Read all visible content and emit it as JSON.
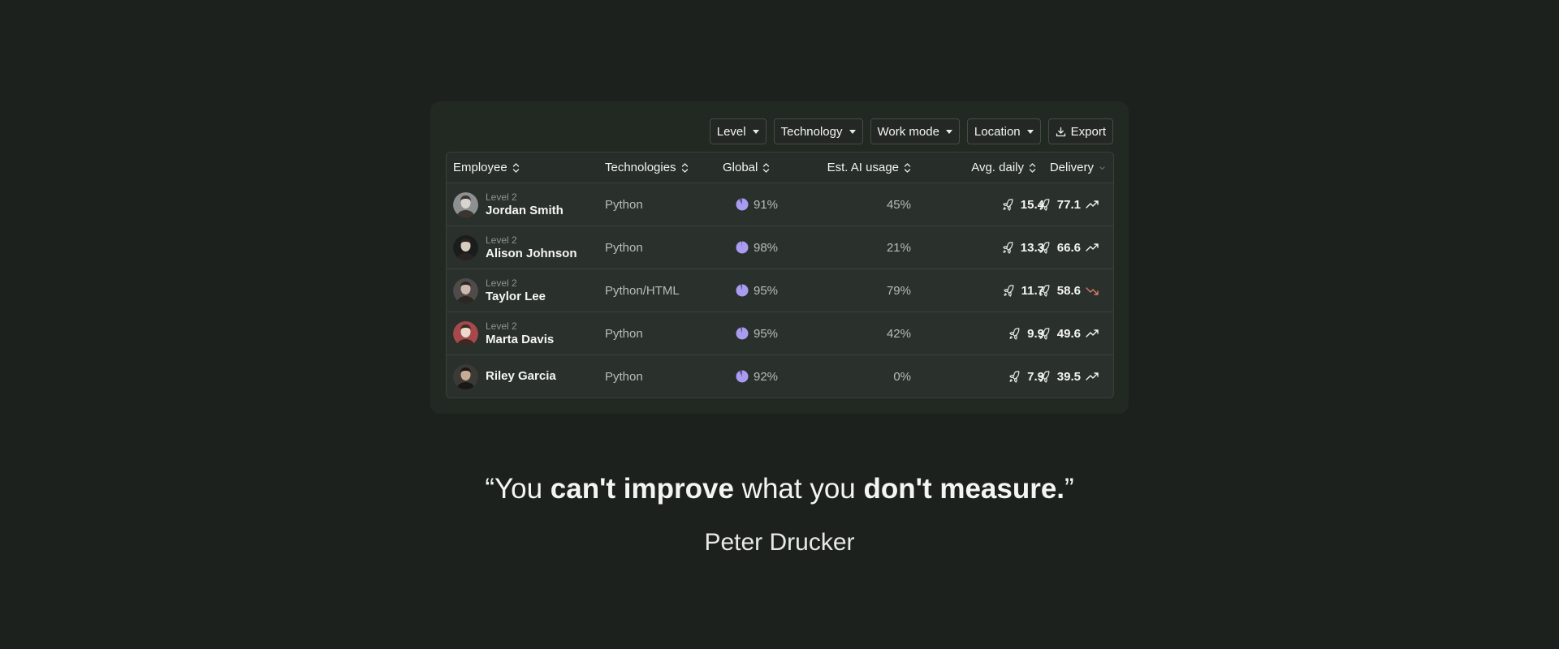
{
  "toolbar": {
    "filters": [
      "Level",
      "Technology",
      "Work mode",
      "Location"
    ],
    "export_label": "Export"
  },
  "table": {
    "headers": {
      "employee": "Employee",
      "technologies": "Technologies",
      "global": "Global",
      "ai_usage": "Est. AI usage",
      "avg_daily": "Avg. daily",
      "delivery": "Delivery"
    },
    "rows": [
      {
        "level": "Level 2",
        "name": "Jordan Smith",
        "tech": "Python",
        "global": "91%",
        "global_value": 0.91,
        "ai": "45%",
        "avg": "15.4",
        "delivery": "77.1",
        "trend": "up"
      },
      {
        "level": "Level 2",
        "name": "Alison Johnson",
        "tech": "Python",
        "global": "98%",
        "global_value": 0.98,
        "ai": "21%",
        "avg": "13.3",
        "delivery": "66.6",
        "trend": "up"
      },
      {
        "level": "Level 2",
        "name": "Taylor Lee",
        "tech": "Python/HTML",
        "global": "95%",
        "global_value": 0.95,
        "ai": "79%",
        "avg": "11.7",
        "delivery": "58.6",
        "trend": "down"
      },
      {
        "level": "Level 2",
        "name": "Marta Davis",
        "tech": "Python",
        "global": "95%",
        "global_value": 0.95,
        "ai": "42%",
        "avg": "9.9",
        "delivery": "49.6",
        "trend": "up"
      },
      {
        "level": "",
        "name": "Riley Garcia",
        "tech": "Python",
        "global": "92%",
        "global_value": 0.92,
        "ai": "0%",
        "avg": "7.9",
        "delivery": "39.5",
        "trend": "up"
      }
    ]
  },
  "quote": {
    "open": "“You ",
    "bold1": "can't improve",
    "mid": " what you ",
    "bold2": "don't measure.",
    "close": "”",
    "author": "Peter Drucker"
  },
  "colors": {
    "background": "#1d211e",
    "card": "#222822",
    "pie": "#a99cf0",
    "trend_up": "#f4f6f4",
    "trend_down": "#d97a6c"
  },
  "icons": {
    "avg_daily": "rocket-icon",
    "delivery": "rocket-icon",
    "trend_up": "trend-up-icon",
    "trend_down": "trend-down-icon",
    "export": "download-icon",
    "sort": "sort-icon"
  }
}
